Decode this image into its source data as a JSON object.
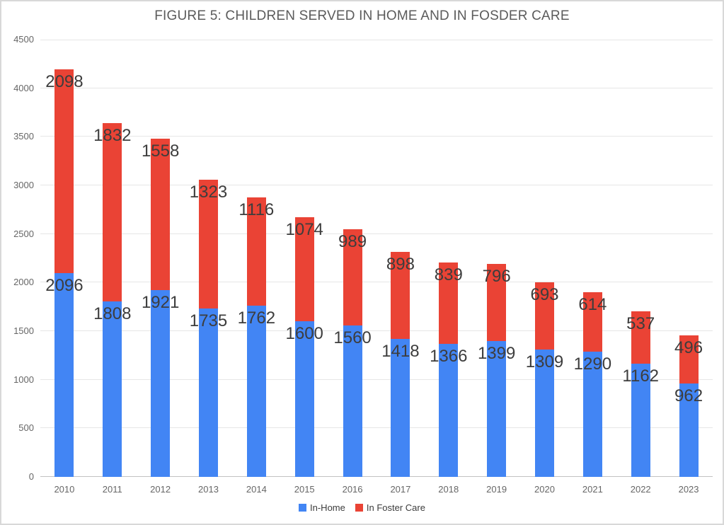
{
  "chart_data": {
    "type": "bar",
    "stacked": true,
    "title": "FIGURE 5: CHILDREN SERVED IN HOME AND IN FOSDER CARE",
    "categories": [
      "2010",
      "2011",
      "2012",
      "2013",
      "2014",
      "2015",
      "2016",
      "2017",
      "2018",
      "2019",
      "2020",
      "2021",
      "2022",
      "2023"
    ],
    "series": [
      {
        "name": "In-Home",
        "color": "#4285F4",
        "values": [
          2096,
          1808,
          1921,
          1735,
          1762,
          1600,
          1560,
          1418,
          1366,
          1399,
          1309,
          1290,
          1162,
          962
        ]
      },
      {
        "name": "In Foster Care",
        "color": "#EA4335",
        "values": [
          2098,
          1832,
          1558,
          1323,
          1116,
          1074,
          989,
          898,
          839,
          796,
          693,
          614,
          537,
          496
        ]
      }
    ],
    "xlabel": "",
    "ylabel": "",
    "ylim": [
      0,
      4500
    ],
    "yticks": [
      0,
      500,
      1000,
      1500,
      2000,
      2500,
      3000,
      3500,
      4000,
      4500
    ],
    "grid": true,
    "legend_position": "bottom"
  },
  "colors": {
    "grid": "#e6e6e6",
    "baseline": "#c2c2c2",
    "title_text": "#5b5b5b",
    "axis_text": "#666666",
    "data_label_text": "#3d3d3d",
    "frame_border": "#d8d8d8",
    "background": "#ffffff"
  }
}
